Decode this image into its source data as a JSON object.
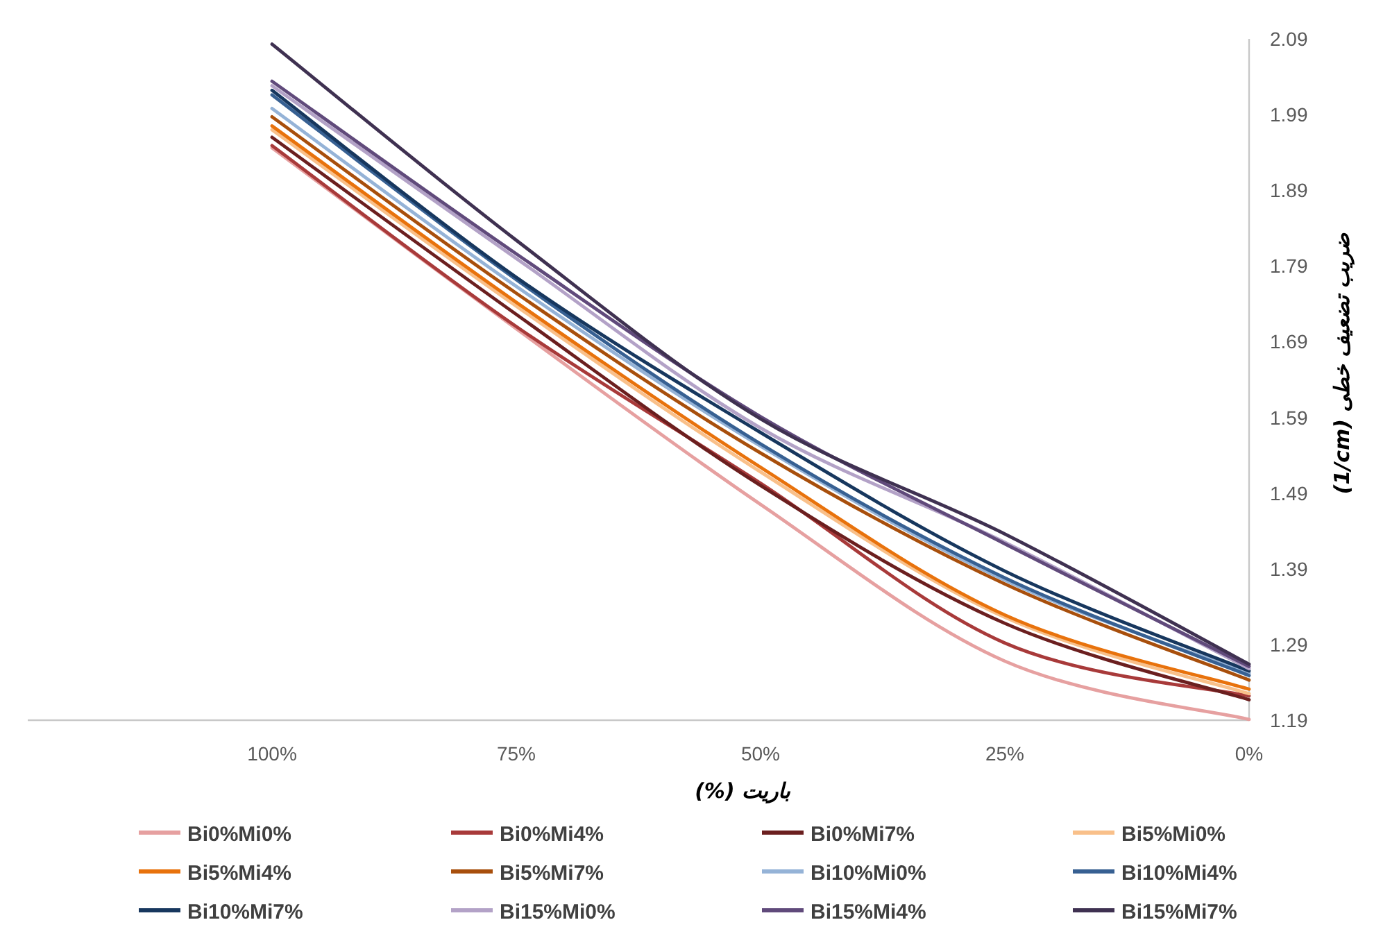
{
  "chart_data": {
    "type": "line",
    "xlabel": "باریت (%)",
    "ylabel": "ضریب تضعیف خطی (1/cm)",
    "categories": [
      null,
      "100%",
      "75%",
      "50%",
      "25%",
      "0%"
    ],
    "ylim": [
      1.19,
      2.09
    ],
    "yticks": [
      1.19,
      1.29,
      1.39,
      1.49,
      1.59,
      1.69,
      1.79,
      1.89,
      1.99,
      2.09
    ],
    "grid": false,
    "legend": "bottom",
    "marker": "none",
    "line_style": "solid",
    "series": [
      {
        "name": "Bi0%Mi0%",
        "color": "#e6a0a0",
        "values": [
          null,
          1.946,
          1.707,
          1.475,
          1.268,
          1.191
        ]
      },
      {
        "name": "Bi0%Mi4%",
        "color": "#a83a3a",
        "values": [
          null,
          1.949,
          1.71,
          1.503,
          1.292,
          1.222
        ]
      },
      {
        "name": "Bi0%Mi7%",
        "color": "#6b1f1f",
        "values": [
          null,
          1.96,
          1.726,
          1.5,
          1.318,
          1.217
        ]
      },
      {
        "name": "Bi5%Mi0%",
        "color": "#f9c08a",
        "values": [
          null,
          1.97,
          1.737,
          1.518,
          1.326,
          1.225
        ]
      },
      {
        "name": "Bi5%Mi4%",
        "color": "#e8720c",
        "values": [
          null,
          1.975,
          1.742,
          1.524,
          1.329,
          1.231
        ]
      },
      {
        "name": "Bi5%Mi7%",
        "color": "#a84f0c",
        "values": [
          null,
          1.987,
          1.754,
          1.543,
          1.37,
          1.243
        ]
      },
      {
        "name": "Bi10%Mi0%",
        "color": "#95b3d7",
        "values": [
          null,
          1.998,
          1.763,
          1.552,
          1.375,
          1.252
        ]
      },
      {
        "name": "Bi10%Mi4%",
        "color": "#376092",
        "values": [
          null,
          2.016,
          1.772,
          1.555,
          1.378,
          1.249
        ]
      },
      {
        "name": "Bi10%Mi7%",
        "color": "#17375e",
        "values": [
          null,
          2.022,
          1.775,
          1.57,
          1.387,
          1.255
        ]
      },
      {
        "name": "Bi15%Mi0%",
        "color": "#b3a2c7",
        "values": [
          null,
          2.028,
          1.8,
          1.576,
          1.425,
          1.258
        ]
      },
      {
        "name": "Bi15%Mi4%",
        "color": "#604a7b",
        "values": [
          null,
          2.034,
          1.806,
          1.591,
          1.423,
          1.261
        ]
      },
      {
        "name": "Bi15%Mi7%",
        "color": "#3f3151",
        "values": [
          null,
          2.083,
          1.824,
          1.588,
          1.436,
          1.264
        ]
      }
    ]
  }
}
